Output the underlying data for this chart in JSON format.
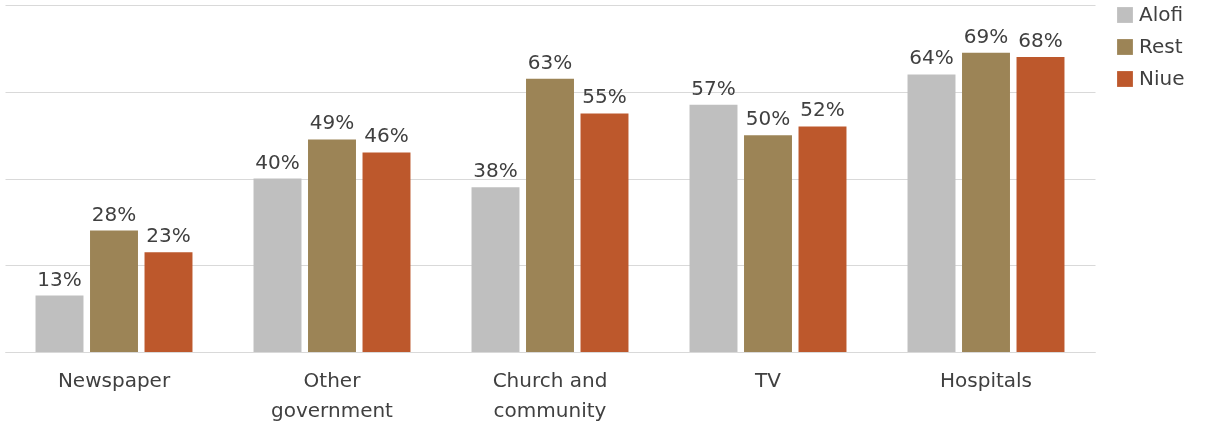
{
  "chart_data": {
    "type": "bar",
    "categories": [
      "Newspaper",
      "Other government",
      "Church and community",
      "TV",
      "Hospitals"
    ],
    "series": [
      {
        "name": "Alofi",
        "color": "#bfbfbf",
        "values": [
          13,
          40,
          38,
          57,
          64
        ],
        "value_labels": [
          "13%",
          "40%",
          "38%",
          "57%",
          "64%"
        ]
      },
      {
        "name": "Rest",
        "color": "#9c8456",
        "values": [
          28,
          49,
          63,
          50,
          69
        ],
        "value_labels": [
          "28%",
          "49%",
          "63%",
          "50%",
          "69%"
        ]
      },
      {
        "name": "Niue",
        "color": "#bd582c",
        "values": [
          23,
          46,
          55,
          52,
          68
        ],
        "value_labels": [
          "23%",
          "46%",
          "55%",
          "52%",
          "68%"
        ]
      }
    ],
    "ylim": [
      0,
      80
    ],
    "yticks": [
      {
        "value": 0,
        "label": null
      },
      {
        "value": 20,
        "label": null
      },
      {
        "value": 40,
        "label": null
      },
      {
        "value": 60,
        "label": null
      },
      {
        "value": 80,
        "label": null
      }
    ],
    "tick_labels": "x",
    "grid": "y",
    "legend": "right"
  }
}
